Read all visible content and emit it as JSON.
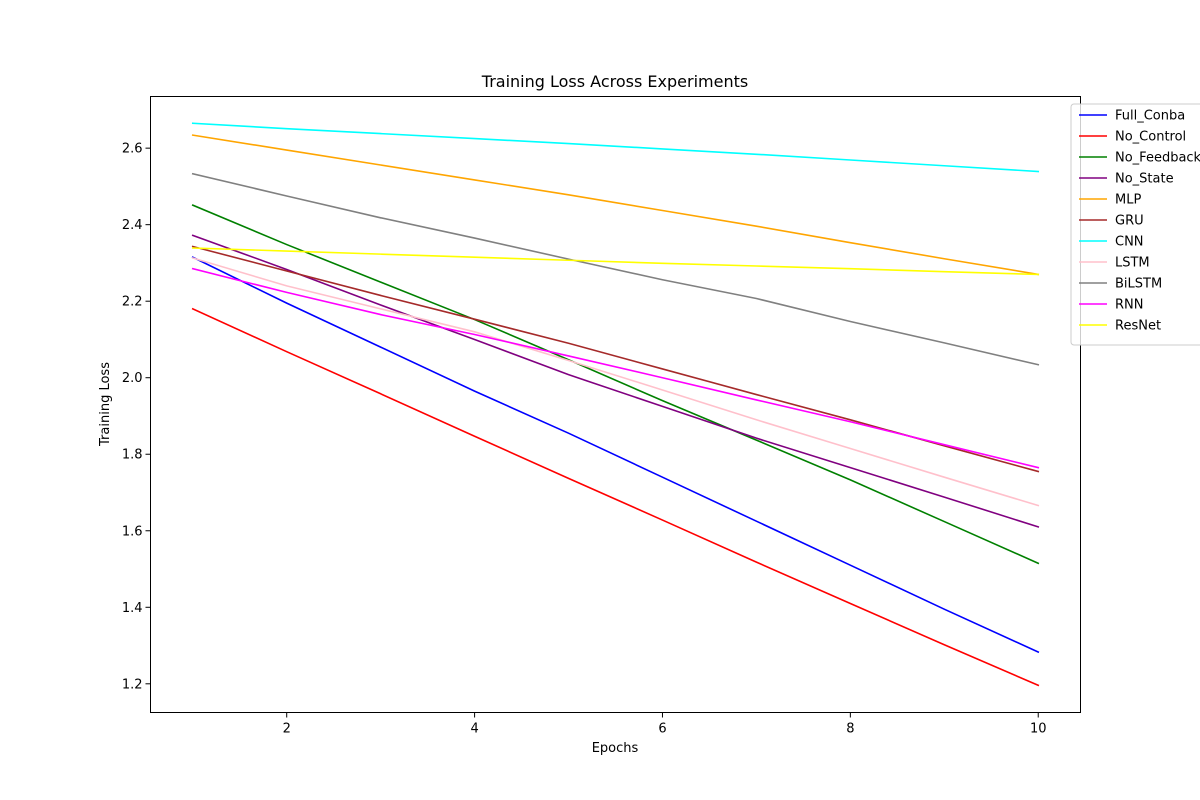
{
  "chart_data": {
    "type": "line",
    "title": "Training Loss Across Experiments",
    "xlabel": "Epochs",
    "ylabel": "Training Loss",
    "xlim": [
      0.55,
      10.45
    ],
    "ylim": [
      1.125,
      2.735
    ],
    "xticks": [
      2,
      4,
      6,
      8,
      10
    ],
    "yticks": [
      1.2,
      1.4,
      1.6,
      1.8,
      2.0,
      2.2,
      2.4,
      2.6
    ],
    "xtick_labels": [
      "2",
      "4",
      "6",
      "8",
      "10"
    ],
    "ytick_labels": [
      "1.2",
      "1.4",
      "1.6",
      "1.8",
      "2.0",
      "2.2",
      "2.4",
      "2.6"
    ],
    "grid": false,
    "legend_position": "right, partly outside the axes",
    "x": [
      1,
      2,
      3,
      4,
      5,
      6,
      7,
      8,
      9,
      10
    ],
    "series": [
      {
        "name": "Full_Conba",
        "color": "#0000ff",
        "values": [
          2.315,
          2.195,
          2.08,
          1.965,
          1.855,
          1.74,
          1.625,
          1.51,
          1.395,
          1.283
        ]
      },
      {
        "name": "No_Control",
        "color": "#ff0000",
        "values": [
          2.18,
          2.068,
          1.958,
          1.847,
          1.737,
          1.628,
          1.518,
          1.41,
          1.302,
          1.196
        ]
      },
      {
        "name": "No_Feedback",
        "color": "#008000",
        "values": [
          2.451,
          2.348,
          2.25,
          2.152,
          2.047,
          1.94,
          1.837,
          1.733,
          1.624,
          1.515
        ]
      },
      {
        "name": "No_State",
        "color": "#800080",
        "values": [
          2.372,
          2.283,
          2.19,
          2.1,
          2.008,
          1.925,
          1.842,
          1.765,
          1.688,
          1.61
        ]
      },
      {
        "name": "MLP",
        "color": "#ffa500",
        "values": [
          2.634,
          2.595,
          2.556,
          2.517,
          2.478,
          2.437,
          2.396,
          2.353,
          2.311,
          2.27
        ]
      },
      {
        "name": "GRU",
        "color": "#a52a2a",
        "values": [
          2.343,
          2.279,
          2.215,
          2.153,
          2.09,
          2.023,
          1.956,
          1.89,
          1.822,
          1.755
        ]
      },
      {
        "name": "CNN",
        "color": "#00ffff",
        "values": [
          2.665,
          2.651,
          2.638,
          2.625,
          2.612,
          2.598,
          2.584,
          2.569,
          2.554,
          2.539
        ]
      },
      {
        "name": "LSTM",
        "color": "#ffc0cb",
        "values": [
          2.313,
          2.24,
          2.18,
          2.12,
          2.045,
          1.968,
          1.89,
          1.815,
          1.74,
          1.666
        ]
      },
      {
        "name": "BiLSTM",
        "color": "#808080",
        "values": [
          2.533,
          2.475,
          2.418,
          2.365,
          2.31,
          2.256,
          2.207,
          2.147,
          2.091,
          2.034
        ]
      },
      {
        "name": "RNN",
        "color": "#ff00ff",
        "values": [
          2.285,
          2.223,
          2.165,
          2.113,
          2.057,
          2.0,
          1.942,
          1.885,
          1.825,
          1.765
        ]
      },
      {
        "name": "ResNet",
        "color": "#ffff00",
        "values": [
          2.339,
          2.331,
          2.323,
          2.315,
          2.307,
          2.299,
          2.292,
          2.285,
          2.277,
          2.27
        ]
      }
    ]
  }
}
